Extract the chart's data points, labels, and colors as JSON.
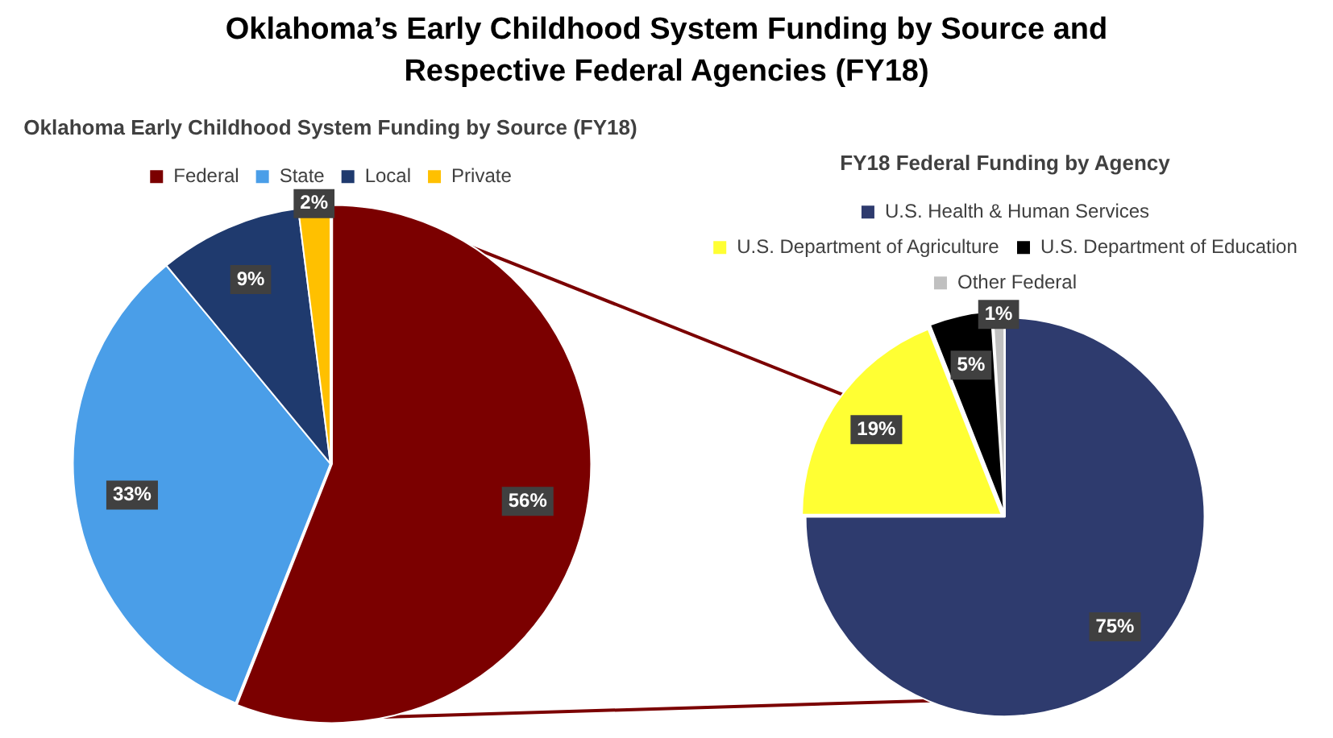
{
  "chart_data": [
    {
      "type": "pie",
      "title": "Oklahoma Early Childhood System Funding by Source (FY18)",
      "categories": [
        "Federal",
        "State",
        "Local",
        "Private"
      ],
      "values": [
        56,
        33,
        9,
        2
      ],
      "colors": [
        "#7b0000",
        "#4a9ee8",
        "#1f3a6e",
        "#ffc000"
      ],
      "legend": "top",
      "value_labels": [
        "56%",
        "33%",
        "9%",
        "2%"
      ],
      "annotations": [
        "Oklahoma’s Early Childhood System Funding by Source and Respective Federal Agencies (FY18)"
      ]
    },
    {
      "type": "pie",
      "title": "FY18 Federal Funding by Agency",
      "categories": [
        "U.S. Health & Human Services",
        "U.S. Department of Agriculture",
        "U.S. Department of Education",
        "Other Federal"
      ],
      "values": [
        75,
        19,
        5,
        1
      ],
      "colors": [
        "#2e3b6e",
        "#ffff33",
        "#000000",
        "#c0c0c0"
      ],
      "legend": "top",
      "value_labels": [
        "75%",
        "19%",
        "5%",
        "1%"
      ]
    }
  ]
}
